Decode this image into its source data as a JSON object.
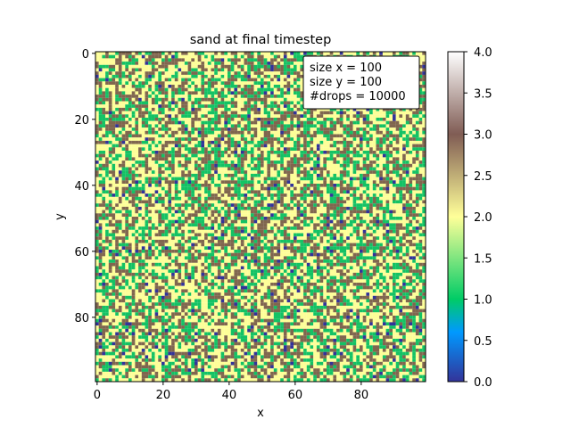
{
  "chart_data": {
    "type": "heatmap",
    "title": "sand at final timestep",
    "xlabel": "x",
    "ylabel": "y",
    "grid_size": [
      100,
      100
    ],
    "x_range": [
      0,
      99
    ],
    "y_range": [
      0,
      99
    ],
    "y_axis_inverted": true,
    "x_ticks": [
      0,
      20,
      40,
      60,
      80
    ],
    "y_ticks": [
      0,
      20,
      40,
      60,
      80
    ],
    "colormap": "terrain",
    "value_range": [
      0,
      4
    ],
    "cell_values_present": [
      0,
      1,
      2,
      3
    ],
    "approx_value_fractions": {
      "0": 0.03,
      "1": 0.27,
      "2": 0.4,
      "3": 0.3
    },
    "colors": {
      "0": "#333399",
      "1": "#14c264",
      "2": "#fdfe98",
      "3": "#80664e"
    },
    "colorbar": {
      "ticks": [
        "0.0",
        "0.5",
        "1.0",
        "1.5",
        "2.0",
        "2.5",
        "3.0",
        "3.5",
        "4.0"
      ],
      "stops": [
        {
          "value": 0.0,
          "color": "#333399"
        },
        {
          "value": 0.6,
          "color": "#0099ff"
        },
        {
          "value": 1.0,
          "color": "#00cc66"
        },
        {
          "value": 2.0,
          "color": "#ffff99"
        },
        {
          "value": 3.0,
          "color": "#805c54"
        },
        {
          "value": 4.0,
          "color": "#ffffff"
        }
      ]
    },
    "annotation_box": {
      "lines": [
        "size x = 100",
        "size y = 100",
        "#drops = 10000"
      ],
      "placement": "top-right"
    }
  }
}
